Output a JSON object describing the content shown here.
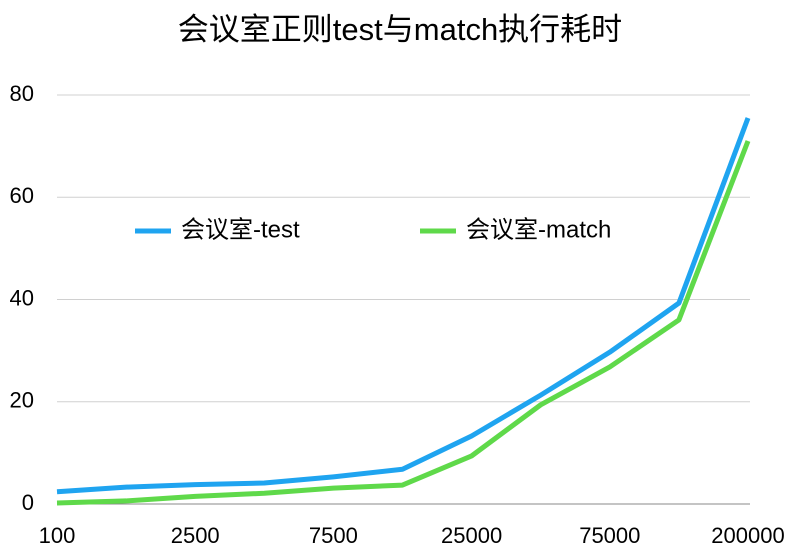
{
  "chart_data": {
    "type": "line",
    "title": "会议室正则test与match执行耗时",
    "categories": [
      "100",
      null,
      "2500",
      null,
      "7500",
      null,
      "25000",
      null,
      "75000",
      null,
      "200000"
    ],
    "series": [
      {
        "name": "会议室-test",
        "color": "#1fa4f0",
        "values": [
          2.4,
          3.3,
          3.8,
          4.1,
          5.3,
          6.8,
          13.3,
          21.3,
          29.7,
          39.3,
          75.5
        ]
      },
      {
        "name": "会议室-match",
        "color": "#5fd94a",
        "values": [
          0.2,
          0.6,
          1.5,
          2.1,
          3.1,
          3.7,
          9.4,
          19.4,
          26.8,
          36,
          71
        ]
      }
    ],
    "ylim": [
      0,
      80
    ],
    "yticks": [
      0,
      20,
      40,
      60,
      80
    ],
    "grid": true,
    "legend": "top"
  }
}
